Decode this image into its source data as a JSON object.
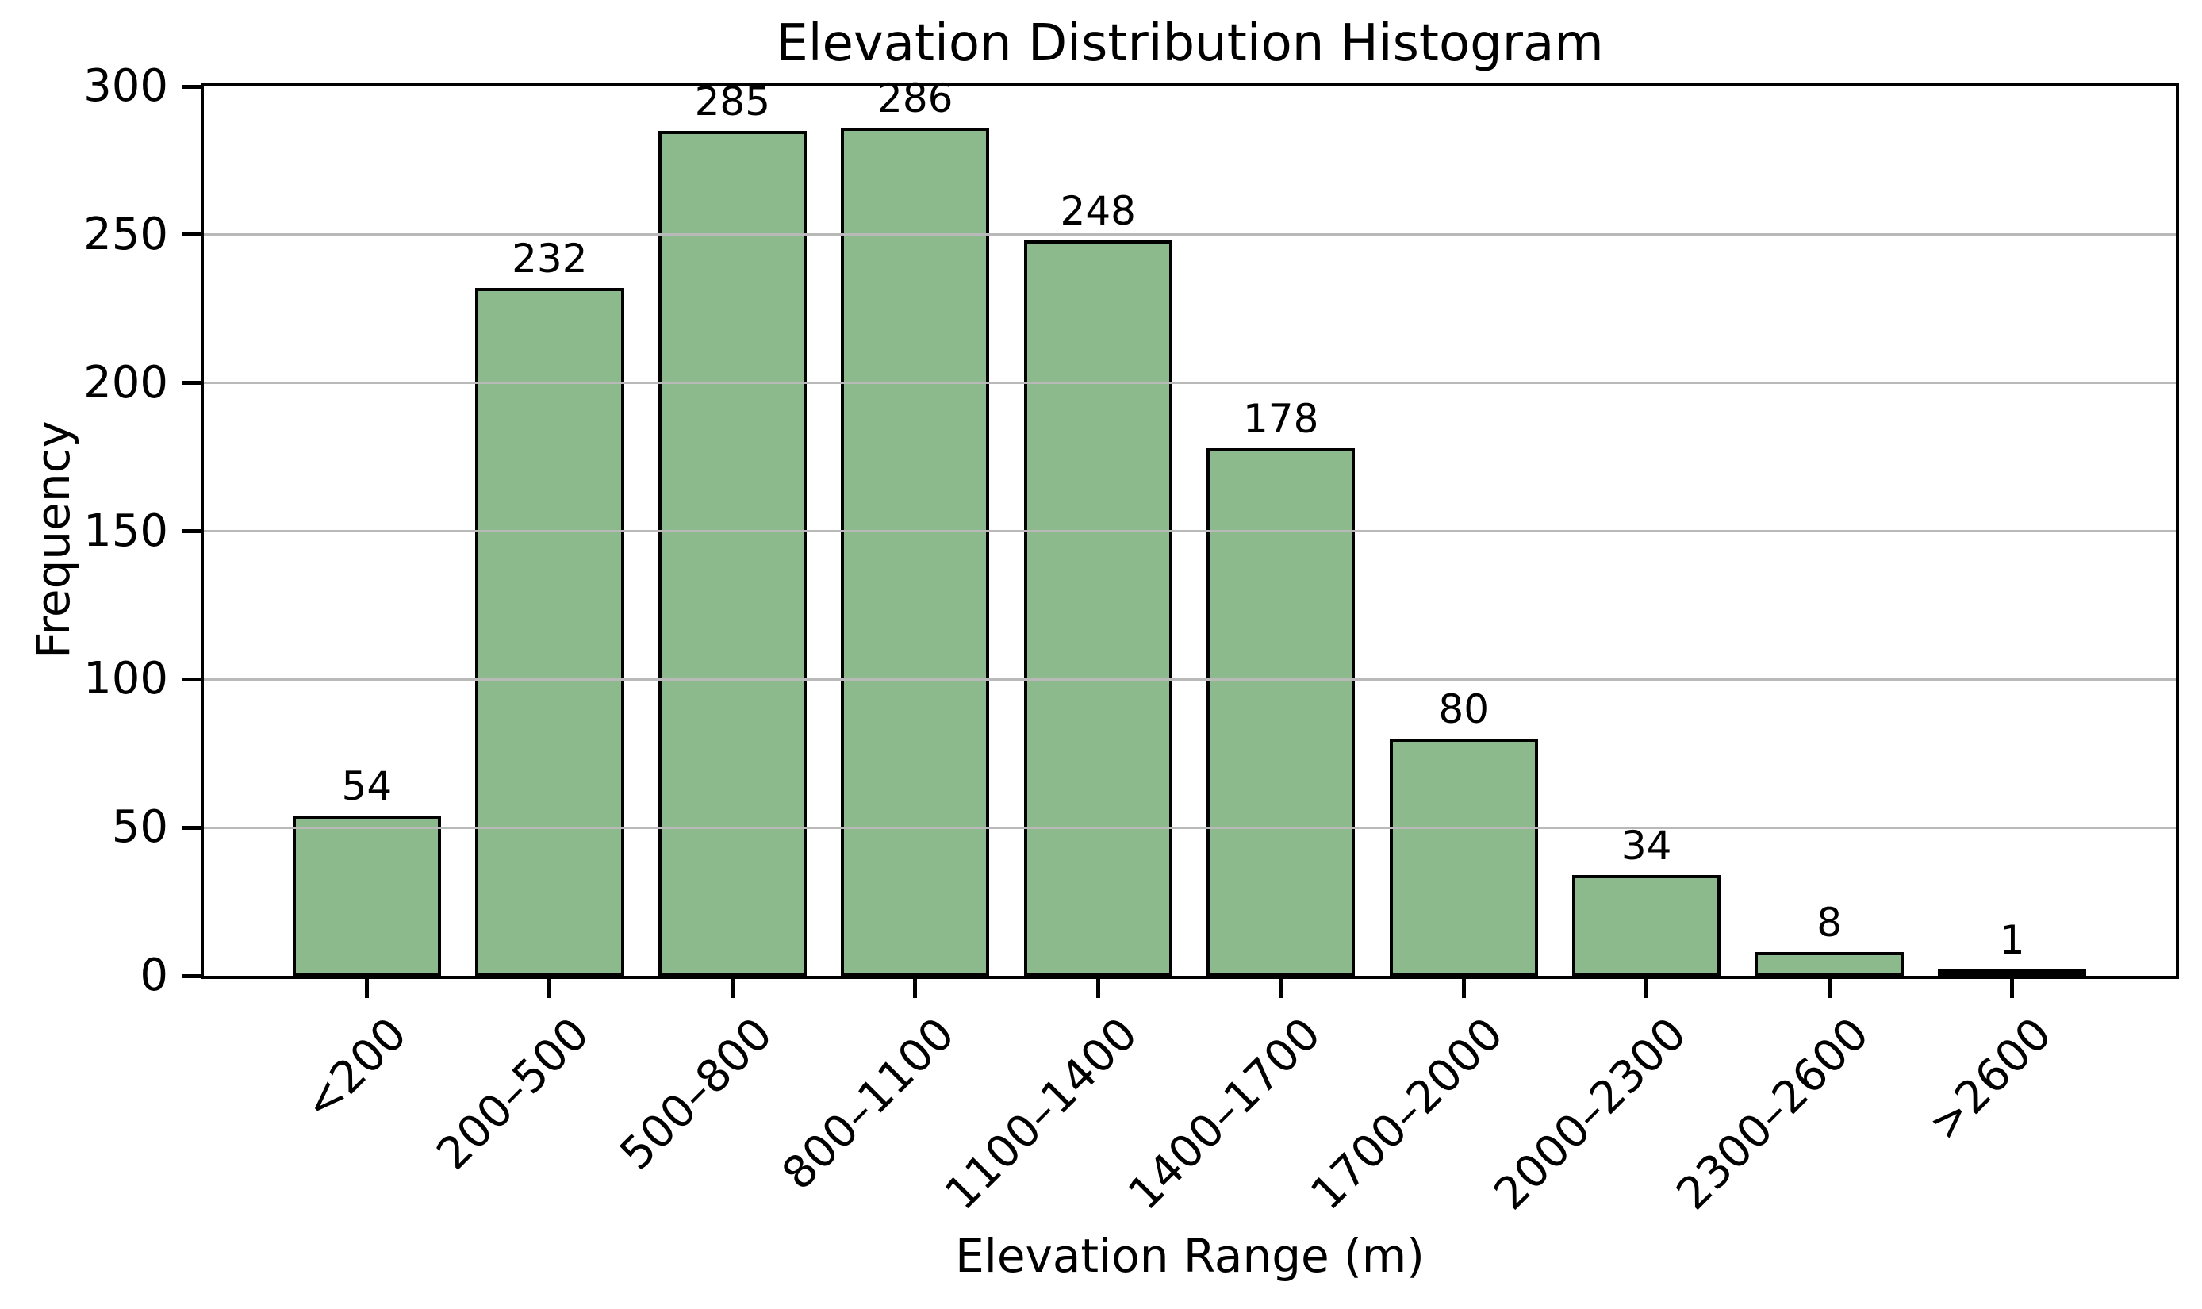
{
  "chart_data": {
    "type": "bar",
    "title": "Elevation Distribution Histogram",
    "xlabel": "Elevation Range (m)",
    "ylabel": "Frequency",
    "categories": [
      "<200",
      "200–500",
      "500–800",
      "800–1100",
      "1100–1400",
      "1400–1700",
      "1700–2000",
      "2000–2300",
      "2300–2600",
      ">2600"
    ],
    "values": [
      54,
      232,
      285,
      286,
      248,
      178,
      80,
      34,
      8,
      1
    ],
    "value_labels_shown": true,
    "ylim": [
      0,
      300
    ],
    "yticks": [
      0,
      50,
      100,
      150,
      200,
      250,
      300
    ],
    "x_tick_rotation_deg": 45,
    "grid": "horizontal, drawn over bars",
    "legend": "none",
    "colors": {
      "bar_fill": "#8dba8d",
      "bar_edge": "#000000",
      "gridline": "#b9b9b9",
      "axis_and_text": "#000000",
      "background": "#ffffff"
    }
  }
}
